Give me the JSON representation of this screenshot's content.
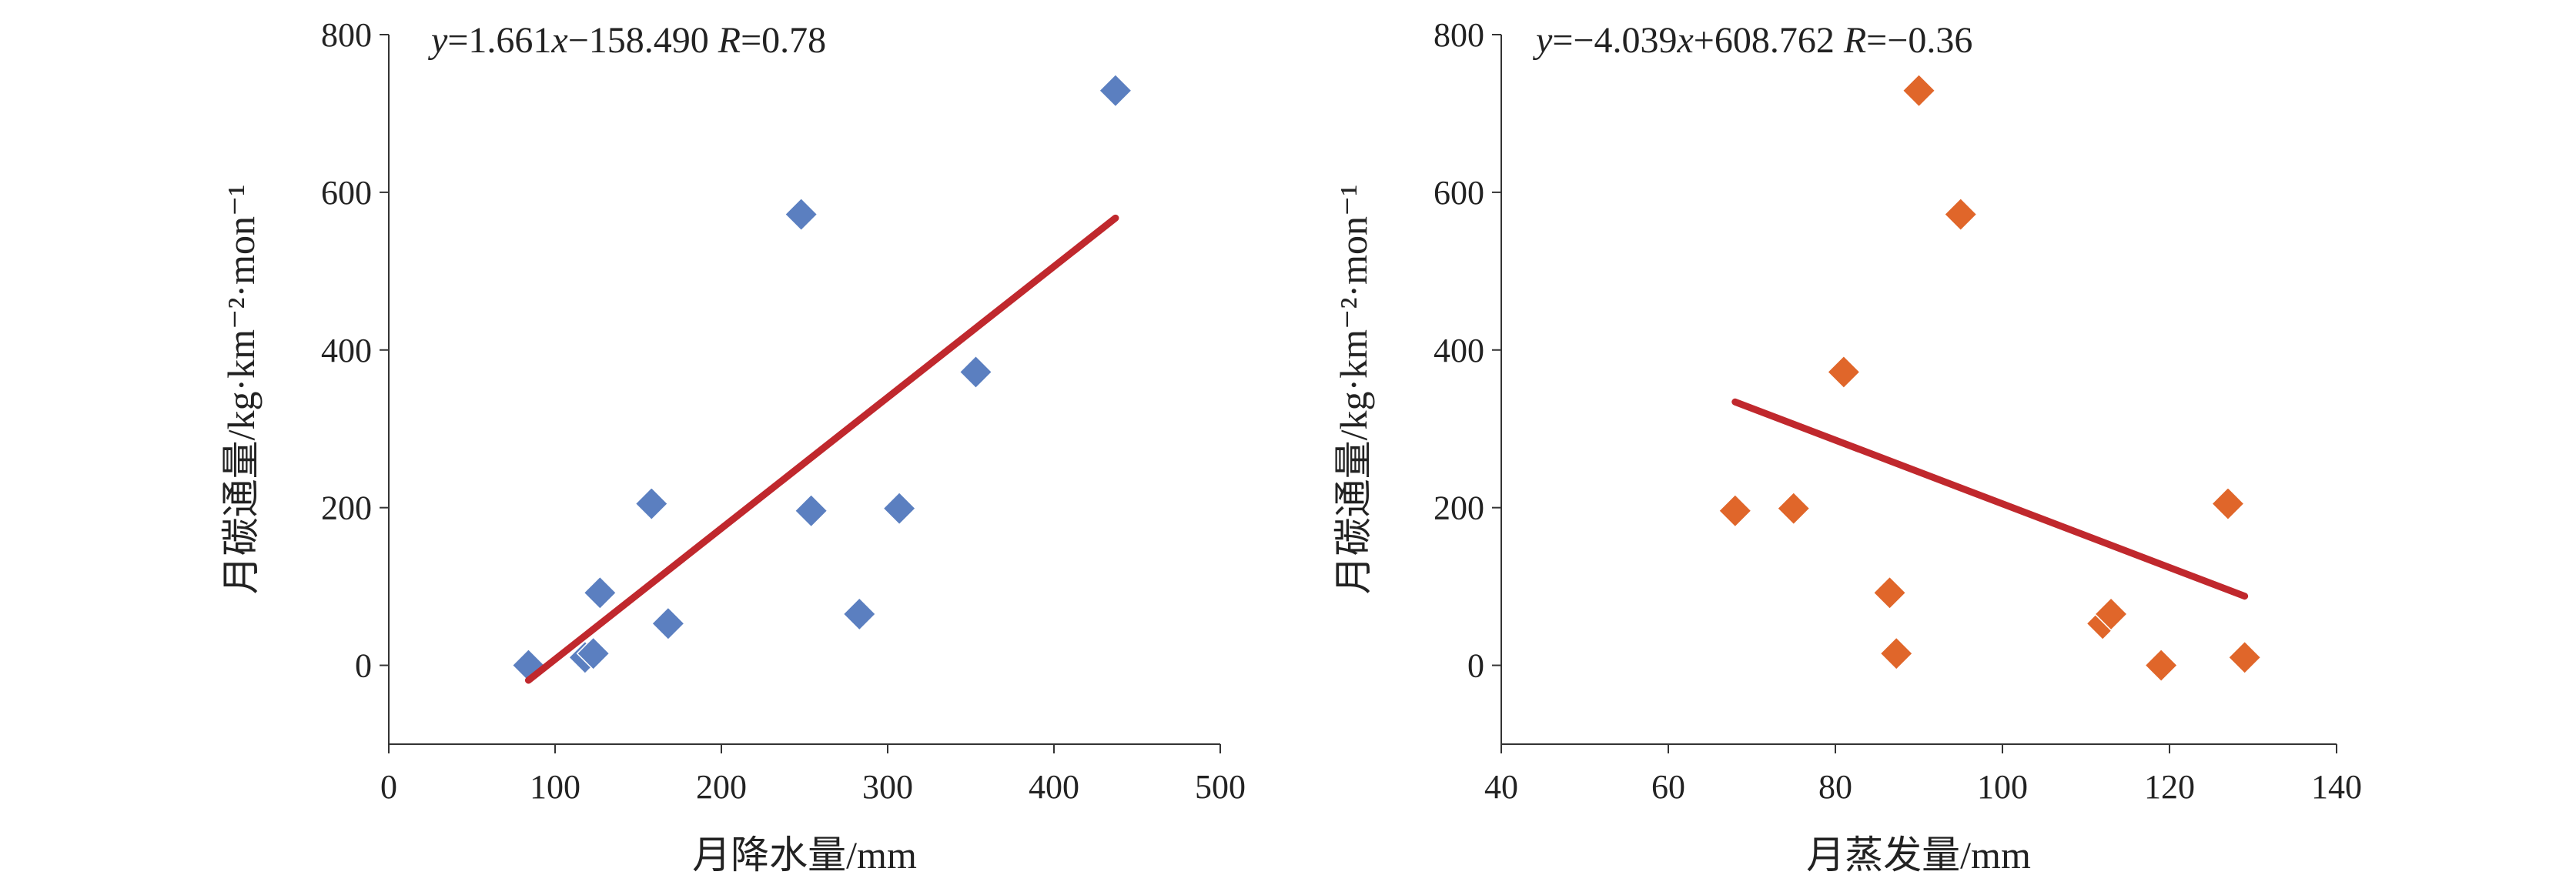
{
  "chart_data": [
    {
      "type": "scatter",
      "xlabel": "月降水量/mm",
      "ylabel": "月碳通量/kg·km⁻²·mon⁻¹",
      "xlim": [
        0,
        500
      ],
      "ylim": [
        -100,
        800
      ],
      "x_ticks": [
        "0",
        "100",
        "200",
        "300",
        "400",
        "500"
      ],
      "y_ticks": [
        "0",
        "200",
        "400",
        "600",
        "800"
      ],
      "x_tick_values": [
        0,
        100,
        200,
        300,
        400,
        500
      ],
      "y_tick_values": [
        0,
        200,
        400,
        600,
        800
      ],
      "grid": false,
      "marker": "diamond",
      "marker_color": "#5B7FC0",
      "trend_color": "#C0282D",
      "points": [
        {
          "x": 84,
          "y": 0
        },
        {
          "x": 118,
          "y": 10
        },
        {
          "x": 123,
          "y": 15
        },
        {
          "x": 127,
          "y": 92
        },
        {
          "x": 158,
          "y": 205
        },
        {
          "x": 168,
          "y": 53
        },
        {
          "x": 248,
          "y": 572
        },
        {
          "x": 254,
          "y": 196
        },
        {
          "x": 283,
          "y": 65
        },
        {
          "x": 307,
          "y": 199
        },
        {
          "x": 353,
          "y": 372
        },
        {
          "x": 437,
          "y": 729
        }
      ],
      "trendline": {
        "slope": 1.661,
        "intercept": -158.49,
        "x_range": [
          84,
          437
        ]
      },
      "equation": {
        "y_var": "y",
        "lhs_eq": "=1.661",
        "x_var": "x",
        "rest": "−158.490 ",
        "r_var": "R",
        "r_val": "=0.78"
      }
    },
    {
      "type": "scatter",
      "xlabel": "月蒸发量/mm",
      "ylabel": "月碳通量/kg·km⁻²·mon⁻¹",
      "xlim": [
        40,
        140
      ],
      "ylim": [
        -100,
        800
      ],
      "x_ticks": [
        "40",
        "60",
        "80",
        "100",
        "120",
        "140"
      ],
      "y_ticks": [
        "0",
        "200",
        "400",
        "600",
        "800"
      ],
      "x_tick_values": [
        40,
        60,
        80,
        100,
        120,
        140
      ],
      "y_tick_values": [
        0,
        200,
        400,
        600,
        800
      ],
      "grid": false,
      "marker": "diamond",
      "marker_color": "#E0662A",
      "trend_color": "#C0282D",
      "points": [
        {
          "x": 68,
          "y": 196
        },
        {
          "x": 75,
          "y": 199
        },
        {
          "x": 81,
          "y": 372
        },
        {
          "x": 86.5,
          "y": 92
        },
        {
          "x": 87.3,
          "y": 15
        },
        {
          "x": 90,
          "y": 729
        },
        {
          "x": 95,
          "y": 572
        },
        {
          "x": 112,
          "y": 53
        },
        {
          "x": 113,
          "y": 65
        },
        {
          "x": 119,
          "y": 0
        },
        {
          "x": 127,
          "y": 205
        },
        {
          "x": 129,
          "y": 10
        }
      ],
      "trendline": {
        "slope": -4.039,
        "intercept": 608.762,
        "x_range": [
          68,
          129
        ]
      },
      "equation": {
        "y_var": "y",
        "lhs_eq": "=−4.039",
        "x_var": "x",
        "rest": "+608.762 ",
        "r_var": "R",
        "r_val": "=−0.36"
      }
    }
  ]
}
